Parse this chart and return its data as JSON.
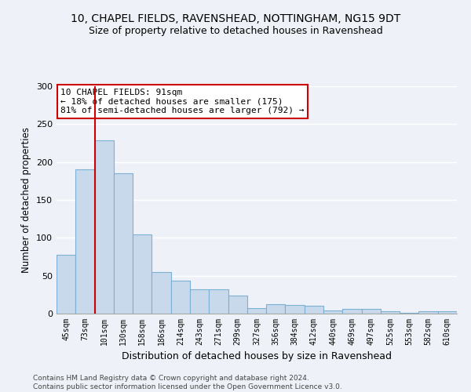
{
  "title_line1": "10, CHAPEL FIELDS, RAVENSHEAD, NOTTINGHAM, NG15 9DT",
  "title_line2": "Size of property relative to detached houses in Ravenshead",
  "xlabel": "Distribution of detached houses by size in Ravenshead",
  "ylabel": "Number of detached properties",
  "categories": [
    "45sqm",
    "73sqm",
    "101sqm",
    "130sqm",
    "158sqm",
    "186sqm",
    "214sqm",
    "243sqm",
    "271sqm",
    "299sqm",
    "327sqm",
    "356sqm",
    "384sqm",
    "412sqm",
    "440sqm",
    "469sqm",
    "497sqm",
    "525sqm",
    "553sqm",
    "582sqm",
    "610sqm"
  ],
  "values": [
    78,
    190,
    229,
    185,
    105,
    55,
    43,
    32,
    32,
    24,
    7,
    12,
    11,
    10,
    4,
    6,
    6,
    3,
    1,
    3,
    3
  ],
  "bar_color": "#c9d9ec",
  "bar_edge_color": "#7bafd4",
  "bar_edge_width": 0.8,
  "highlight_line_color": "#cc0000",
  "annotation_text": "10 CHAPEL FIELDS: 91sqm\n← 18% of detached houses are smaller (175)\n81% of semi-detached houses are larger (792) →",
  "annotation_box_color": "#ffffff",
  "annotation_box_edge_color": "#cc0000",
  "ylim": [
    0,
    300
  ],
  "yticks": [
    0,
    50,
    100,
    150,
    200,
    250,
    300
  ],
  "footnote": "Contains HM Land Registry data © Crown copyright and database right 2024.\nContains public sector information licensed under the Open Government Licence v3.0.",
  "background_color": "#eef2f8",
  "grid_color": "#ffffff",
  "title_fontsize": 10,
  "subtitle_fontsize": 9,
  "annotation_fontsize": 8,
  "footnote_fontsize": 6.5
}
